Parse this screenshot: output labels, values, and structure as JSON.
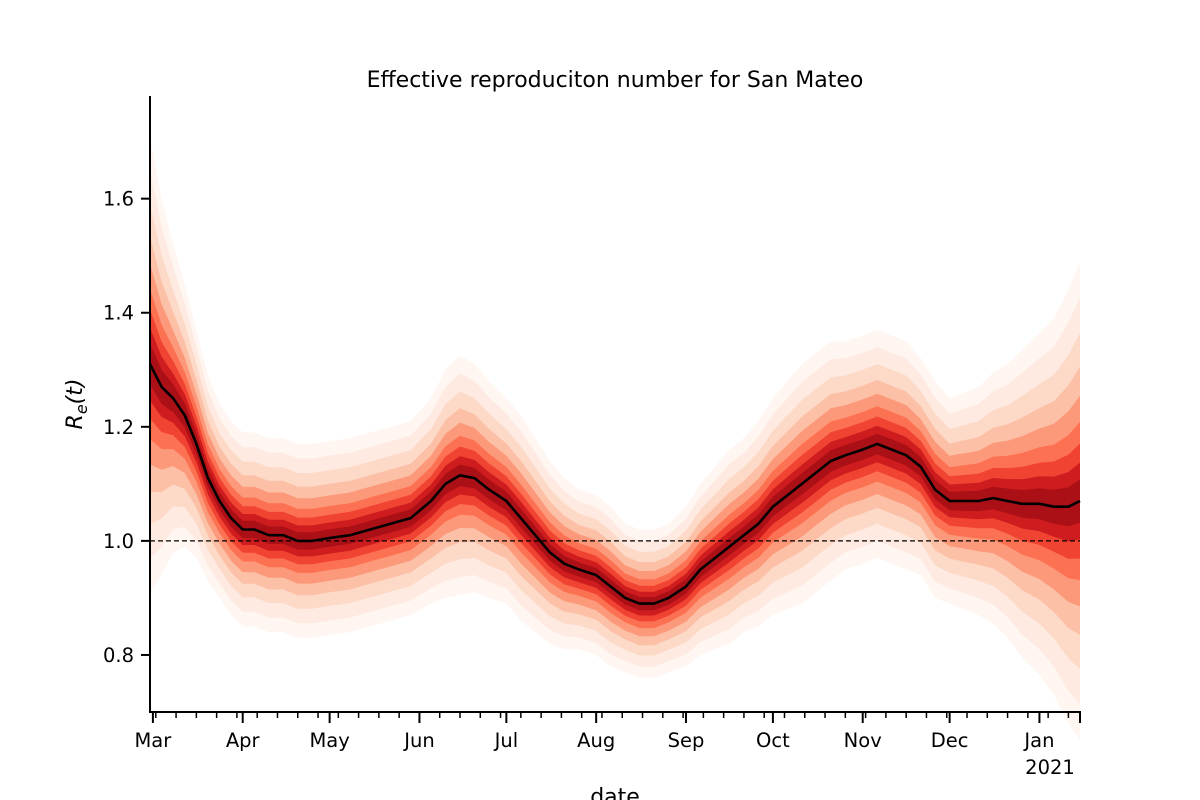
{
  "chart_data": {
    "type": "line",
    "title": "Effective reproduciton number for San Mateo",
    "xlabel": "date",
    "ylabel": "R_e(t)",
    "x_range": [
      "2020-02-29",
      "2021-01-15"
    ],
    "ylim": [
      0.7,
      1.78
    ],
    "y_ticks": [
      0.8,
      1.0,
      1.2,
      1.4,
      1.6
    ],
    "y_tick_labels": [
      "0.8",
      "1.0",
      "1.2",
      "1.4",
      "1.6"
    ],
    "x_ticks": [
      "2020-03-01",
      "2020-04-01",
      "2020-05-01",
      "2020-06-01",
      "2020-07-01",
      "2020-08-01",
      "2020-09-01",
      "2020-10-01",
      "2020-11-01",
      "2020-12-01",
      "2021-01-01"
    ],
    "x_tick_labels": [
      "Mar",
      "Apr",
      "May",
      "Jun",
      "Jul",
      "Aug",
      "Sep",
      "Oct",
      "Nov",
      "Dec",
      "Jan"
    ],
    "x_year_label": "2021",
    "reference_line": 1.0,
    "grid": false,
    "legend": false,
    "colors": {
      "median": "#000000",
      "band_light": "#fee5d9",
      "band_dark": "#cb181d",
      "reference": "#000000"
    },
    "series": [
      {
        "x": [
          "2020-02-29",
          "2020-03-04",
          "2020-03-08",
          "2020-03-12",
          "2020-03-16",
          "2020-03-20",
          "2020-03-24",
          "2020-03-28",
          "2020-04-01",
          "2020-04-05",
          "2020-04-10",
          "2020-04-15",
          "2020-04-20",
          "2020-04-25",
          "2020-05-01",
          "2020-05-08",
          "2020-05-15",
          "2020-05-22",
          "2020-05-29",
          "2020-06-05",
          "2020-06-10",
          "2020-06-15",
          "2020-06-20",
          "2020-06-25",
          "2020-07-01",
          "2020-07-06",
          "2020-07-11",
          "2020-07-16",
          "2020-07-21",
          "2020-07-26",
          "2020-08-01",
          "2020-08-06",
          "2020-08-11",
          "2020-08-16",
          "2020-08-21",
          "2020-08-26",
          "2020-09-01",
          "2020-09-06",
          "2020-09-11",
          "2020-09-16",
          "2020-09-21",
          "2020-09-26",
          "2020-10-01",
          "2020-10-06",
          "2020-10-11",
          "2020-10-16",
          "2020-10-21",
          "2020-10-26",
          "2020-11-01",
          "2020-11-06",
          "2020-11-11",
          "2020-11-16",
          "2020-11-21",
          "2020-11-26",
          "2020-12-01",
          "2020-12-06",
          "2020-12-11",
          "2020-12-16",
          "2020-12-21",
          "2020-12-26",
          "2021-01-01",
          "2021-01-06",
          "2021-01-11",
          "2021-01-15"
        ],
        "values": [
          1.31,
          1.27,
          1.25,
          1.22,
          1.17,
          1.11,
          1.07,
          1.04,
          1.02,
          1.02,
          1.01,
          1.01,
          1.0,
          1.0,
          1.005,
          1.01,
          1.02,
          1.03,
          1.04,
          1.07,
          1.1,
          1.115,
          1.11,
          1.09,
          1.07,
          1.04,
          1.01,
          0.98,
          0.96,
          0.95,
          0.94,
          0.92,
          0.9,
          0.89,
          0.89,
          0.9,
          0.92,
          0.95,
          0.97,
          0.99,
          1.01,
          1.03,
          1.06,
          1.08,
          1.1,
          1.12,
          1.14,
          1.15,
          1.16,
          1.17,
          1.16,
          1.15,
          1.13,
          1.09,
          1.07,
          1.07,
          1.07,
          1.075,
          1.07,
          1.065,
          1.065,
          1.06,
          1.06,
          1.07
        ]
      }
    ],
    "uncertainty_halfwidth": [
      0.4,
      0.33,
      0.27,
      0.23,
      0.2,
      0.18,
      0.17,
      0.17,
      0.17,
      0.17,
      0.17,
      0.17,
      0.17,
      0.17,
      0.17,
      0.17,
      0.17,
      0.17,
      0.17,
      0.18,
      0.2,
      0.21,
      0.2,
      0.19,
      0.18,
      0.18,
      0.17,
      0.16,
      0.15,
      0.14,
      0.14,
      0.14,
      0.13,
      0.13,
      0.13,
      0.13,
      0.14,
      0.15,
      0.16,
      0.17,
      0.17,
      0.18,
      0.19,
      0.2,
      0.21,
      0.21,
      0.21,
      0.2,
      0.2,
      0.2,
      0.2,
      0.2,
      0.19,
      0.19,
      0.18,
      0.19,
      0.2,
      0.22,
      0.24,
      0.27,
      0.3,
      0.33,
      0.38,
      0.42
    ]
  }
}
